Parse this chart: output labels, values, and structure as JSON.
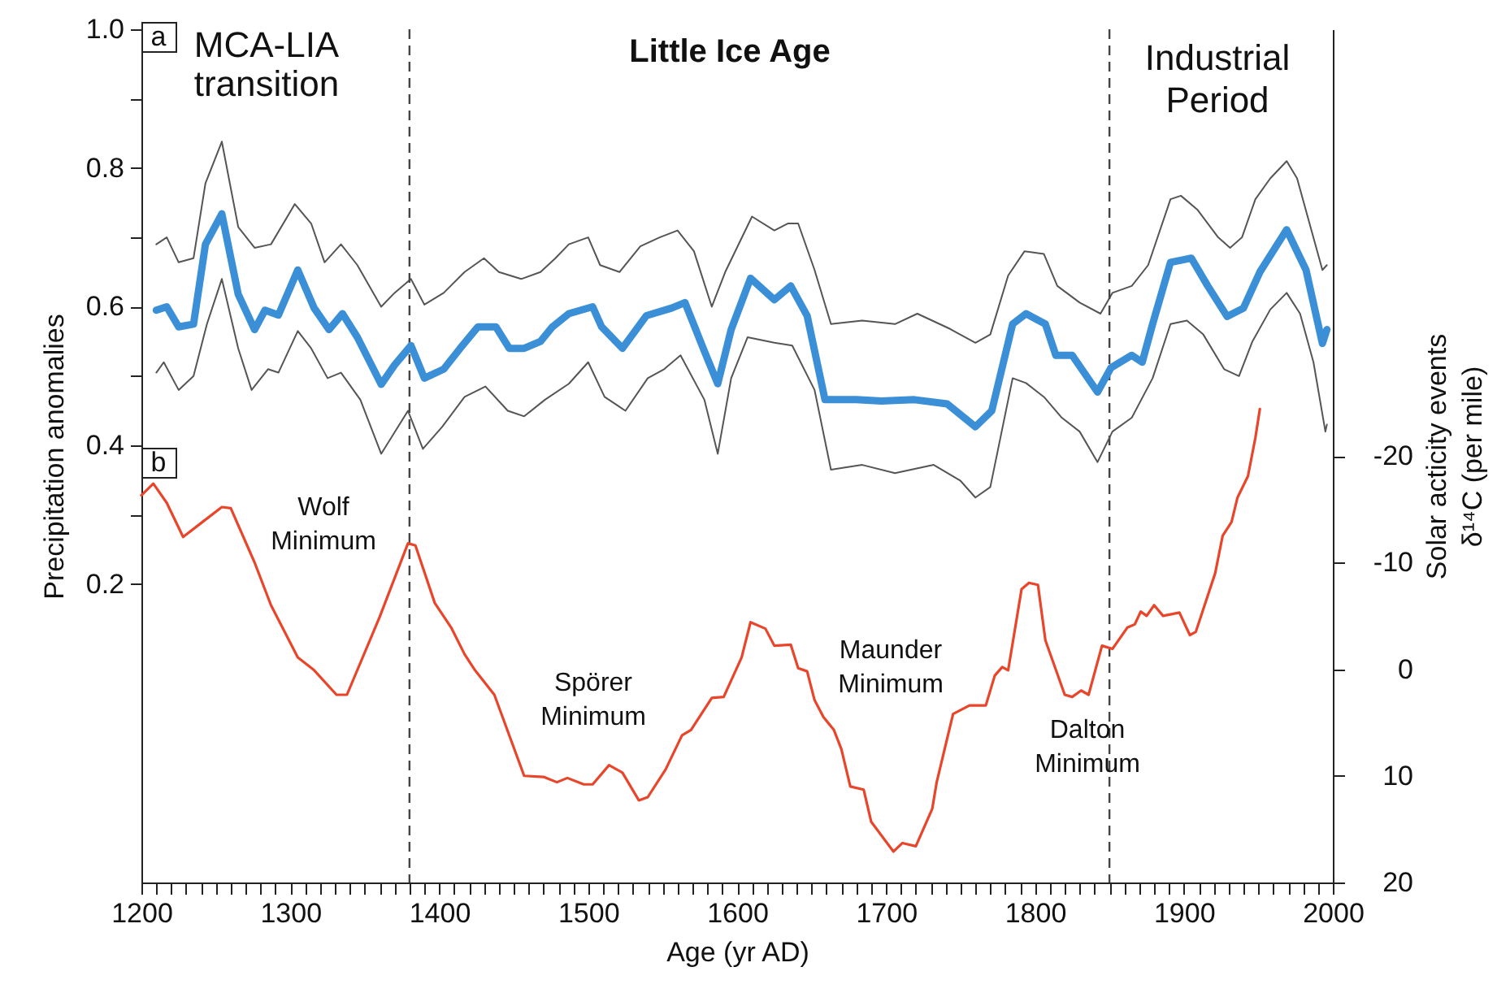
{
  "chart_data": {
    "type": "line",
    "xlabel": "Age (yr AD)",
    "ylabel": "Precipitation anomalies",
    "y2label": "Solar acticity events δ¹⁴C (per mile)",
    "xlim": [
      1200,
      2000
    ],
    "xticks": [
      1200,
      {
        "value": 1210,
        "label": null
      },
      {
        "value": 1220,
        "label": null
      },
      {
        "value": 1230,
        "label": null
      },
      {
        "value": 1240,
        "label": null
      },
      {
        "value": 1250,
        "label": null
      },
      {
        "value": 1260,
        "label": null
      },
      {
        "value": 1270,
        "label": null
      },
      {
        "value": 1280,
        "label": null
      },
      {
        "value": 1290,
        "label": null
      },
      1300,
      {
        "value": 1310,
        "label": null
      },
      {
        "value": 1320,
        "label": null
      },
      {
        "value": 1330,
        "label": null
      },
      {
        "value": 1340,
        "label": null
      },
      {
        "value": 1350,
        "label": null
      },
      {
        "value": 1360,
        "label": null
      },
      {
        "value": 1370,
        "label": null
      },
      {
        "value": 1380,
        "label": null
      },
      {
        "value": 1390,
        "label": null
      },
      1400,
      {
        "value": 1410,
        "label": null
      },
      {
        "value": 1420,
        "label": null
      },
      {
        "value": 1430,
        "label": null
      },
      {
        "value": 1440,
        "label": null
      },
      {
        "value": 1450,
        "label": null
      },
      {
        "value": 1460,
        "label": null
      },
      {
        "value": 1470,
        "label": null
      },
      {
        "value": 1480,
        "label": null
      },
      {
        "value": 1490,
        "label": null
      },
      1500,
      {
        "value": 1510,
        "label": null
      },
      {
        "value": 1520,
        "label": null
      },
      {
        "value": 1530,
        "label": null
      },
      {
        "value": 1540,
        "label": null
      },
      {
        "value": 1550,
        "label": null
      },
      {
        "value": 1560,
        "label": null
      },
      {
        "value": 1570,
        "label": null
      },
      {
        "value": 1580,
        "label": null
      },
      {
        "value": 1590,
        "label": null
      },
      1600,
      {
        "value": 1610,
        "label": null
      },
      {
        "value": 1620,
        "label": null
      },
      {
        "value": 1630,
        "label": null
      },
      {
        "value": 1640,
        "label": null
      },
      {
        "value": 1650,
        "label": null
      },
      {
        "value": 1660,
        "label": null
      },
      {
        "value": 1670,
        "label": null
      },
      {
        "value": 1680,
        "label": null
      },
      {
        "value": 1690,
        "label": null
      },
      1700,
      {
        "value": 1710,
        "label": null
      },
      {
        "value": 1720,
        "label": null
      },
      {
        "value": 1730,
        "label": null
      },
      {
        "value": 1740,
        "label": null
      },
      {
        "value": 1750,
        "label": null
      },
      {
        "value": 1760,
        "label": null
      },
      {
        "value": 1770,
        "label": null
      },
      {
        "value": 1780,
        "label": null
      },
      {
        "value": 1790,
        "label": null
      },
      1800,
      {
        "value": 1810,
        "label": null
      },
      {
        "value": 1820,
        "label": null
      },
      {
        "value": 1830,
        "label": null
      },
      {
        "value": 1840,
        "label": null
      },
      {
        "value": 1850,
        "label": null
      },
      {
        "value": 1860,
        "label": null
      },
      {
        "value": 1870,
        "label": null
      },
      {
        "value": 1880,
        "label": null
      },
      {
        "value": 1890,
        "label": null
      },
      1900,
      {
        "value": 1910,
        "label": null
      },
      {
        "value": 1920,
        "label": null
      },
      {
        "value": 1930,
        "label": null
      },
      {
        "value": 1940,
        "label": null
      },
      {
        "value": 1950,
        "label": null
      },
      {
        "value": 1960,
        "label": null
      },
      {
        "value": 1970,
        "label": null
      },
      {
        "value": 1980,
        "label": null
      },
      {
        "value": 1990,
        "label": null
      },
      2000
    ],
    "ylim": [
      -0.23,
      1.0
    ],
    "yticks": [
      0.2,
      {
        "value": 0.3,
        "label": null
      },
      0.4,
      {
        "value": 0.5,
        "label": null
      },
      0.6,
      {
        "value": 0.7,
        "label": null
      },
      0.8,
      {
        "value": 0.9,
        "label": null
      },
      {
        "value": 1.0,
        "label": "1.0"
      }
    ],
    "y2lim": [
      20,
      -60
    ],
    "y2ticks": [
      -20,
      -10,
      0,
      10,
      20
    ],
    "series": [
      {
        "color": "#555555",
        "x": [
          1210,
          1217,
          1225,
          1235,
          1243,
          1254,
          1265,
          1276,
          1287,
          1303,
          1314,
          1323,
          1334,
          1345,
          1361,
          1370,
          1381,
          1390,
          1403,
          1417,
          1430,
          1440,
          1455,
          1468,
          1478,
          1487,
          1500,
          1508,
          1521,
          1535,
          1548,
          1560,
          1571,
          1583,
          1592,
          1610,
          1625,
          1634,
          1641,
          1652,
          1663,
          1684,
          1706,
          1721,
          1743,
          1760,
          1770,
          1782,
          1793,
          1806,
          1815,
          1830,
          1844,
          1852,
          1865,
          1876,
          1891,
          1898,
          1909,
          1923,
          1931,
          1939,
          1948,
          1958,
          1969,
          1976,
          1985,
          1993,
          1996
        ],
        "values": [
          0.69,
          0.7,
          0.664,
          0.67,
          0.778,
          0.838,
          0.715,
          0.685,
          0.69,
          0.748,
          0.72,
          0.664,
          0.69,
          0.66,
          0.6,
          0.62,
          0.64,
          0.603,
          0.62,
          0.65,
          0.67,
          0.65,
          0.64,
          0.65,
          0.67,
          0.69,
          0.7,
          0.66,
          0.65,
          0.687,
          0.7,
          0.71,
          0.68,
          0.6,
          0.65,
          0.73,
          0.71,
          0.72,
          0.72,
          0.653,
          0.575,
          0.58,
          0.575,
          0.59,
          0.568,
          0.548,
          0.56,
          0.645,
          0.68,
          0.676,
          0.63,
          0.606,
          0.59,
          0.62,
          0.63,
          0.66,
          0.755,
          0.76,
          0.74,
          0.7,
          0.685,
          0.7,
          0.755,
          0.785,
          0.81,
          0.785,
          0.715,
          0.653,
          0.66
        ]
      },
      {
        "color": "#555555",
        "x": [
          1210,
          1215,
          1225,
          1235,
          1244,
          1254,
          1265,
          1274,
          1285,
          1292,
          1305,
          1314,
          1325,
          1334,
          1347,
          1361,
          1370,
          1379,
          1389,
          1402,
          1417,
          1431,
          1446,
          1457,
          1471,
          1487,
          1500,
          1511,
          1525,
          1540,
          1551,
          1562,
          1578,
          1587,
          1596,
          1607,
          1625,
          1637,
          1652,
          1663,
          1684,
          1706,
          1732,
          1750,
          1760,
          1770,
          1785,
          1794,
          1806,
          1818,
          1830,
          1842,
          1852,
          1865,
          1879,
          1891,
          1902,
          1913,
          1927,
          1937,
          1946,
          1958,
          1969,
          1978,
          1987,
          1995,
          1996
        ],
        "values": [
          0.505,
          0.52,
          0.48,
          0.5,
          0.575,
          0.64,
          0.54,
          0.48,
          0.51,
          0.505,
          0.565,
          0.54,
          0.497,
          0.505,
          0.466,
          0.388,
          0.419,
          0.45,
          0.395,
          0.427,
          0.47,
          0.485,
          0.45,
          0.442,
          0.466,
          0.489,
          0.52,
          0.47,
          0.45,
          0.497,
          0.51,
          0.53,
          0.466,
          0.388,
          0.497,
          0.556,
          0.548,
          0.544,
          0.48,
          0.365,
          0.372,
          0.36,
          0.372,
          0.349,
          0.325,
          0.34,
          0.497,
          0.49,
          0.47,
          0.44,
          0.42,
          0.376,
          0.42,
          0.44,
          0.497,
          0.575,
          0.58,
          0.56,
          0.51,
          0.5,
          0.55,
          0.596,
          0.62,
          0.59,
          0.52,
          0.42,
          0.43
        ]
      },
      {
        "color": "#3a8fd6",
        "x": [
          1210,
          1217,
          1225,
          1235,
          1243,
          1254,
          1265,
          1276,
          1283,
          1292,
          1305,
          1316,
          1326,
          1335,
          1345,
          1361,
          1370,
          1381,
          1390,
          1403,
          1414,
          1426,
          1438,
          1447,
          1457,
          1468,
          1476,
          1487,
          1503,
          1509,
          1523,
          1539,
          1556,
          1565,
          1578,
          1587,
          1596,
          1609,
          1625,
          1636,
          1647,
          1659,
          1680,
          1697,
          1719,
          1741,
          1760,
          1771,
          1785,
          1794,
          1807,
          1814,
          1825,
          1842,
          1851,
          1865,
          1872,
          1879,
          1891,
          1905,
          1916,
          1929,
          1940,
          1951,
          1969,
          1982,
          1993,
          1996
        ],
        "values": [
          0.595,
          0.6,
          0.571,
          0.575,
          0.69,
          0.734,
          0.618,
          0.567,
          0.595,
          0.588,
          0.653,
          0.598,
          0.567,
          0.59,
          0.556,
          0.488,
          0.516,
          0.544,
          0.497,
          0.51,
          0.54,
          0.571,
          0.571,
          0.54,
          0.54,
          0.55,
          0.571,
          0.59,
          0.6,
          0.571,
          0.54,
          0.587,
          0.598,
          0.606,
          0.536,
          0.489,
          0.567,
          0.641,
          0.61,
          0.63,
          0.587,
          0.466,
          0.466,
          0.464,
          0.466,
          0.46,
          0.427,
          0.45,
          0.575,
          0.59,
          0.575,
          0.53,
          0.53,
          0.477,
          0.512,
          0.53,
          0.52,
          0.575,
          0.664,
          0.67,
          0.63,
          0.586,
          0.598,
          0.65,
          0.711,
          0.653,
          0.547,
          0.567
        ]
      },
      {
        "color": "#e8452a",
        "axis": "y2",
        "x": [
          1200,
          1208,
          1217,
          1228,
          1241,
          1254,
          1260,
          1276,
          1287,
          1305,
          1316,
          1331,
          1338,
          1360,
          1379,
          1384,
          1397,
          1408,
          1417,
          1424,
          1437,
          1457,
          1470,
          1479,
          1486,
          1497,
          1503,
          1514,
          1523,
          1534,
          1540,
          1552,
          1563,
          1569,
          1583,
          1591,
          1603,
          1609,
          1619,
          1625,
          1636,
          1641,
          1647,
          1652,
          1658,
          1665,
          1670,
          1676,
          1685,
          1690,
          1705,
          1711,
          1720,
          1731,
          1734,
          1745,
          1756,
          1767,
          1773,
          1778,
          1782,
          1791,
          1796,
          1802,
          1807,
          1820,
          1825,
          1831,
          1836,
          1845,
          1852,
          1862,
          1867,
          1871,
          1875,
          1880,
          1886,
          1897,
          1904,
          1908,
          1921,
          1926,
          1932,
          1936,
          1943,
          1948,
          1951
        ],
        "values": [
          -16.3,
          -17.4,
          -15.6,
          -12.4,
          -13.8,
          -15.2,
          -15.1,
          -10.0,
          -6.0,
          -1.1,
          0.1,
          2.4,
          2.4,
          -4.9,
          -11.8,
          -11.6,
          -6.2,
          -3.9,
          -1.4,
          0.1,
          2.4,
          10.0,
          10.1,
          10.6,
          10.2,
          10.8,
          10.8,
          9.0,
          9.7,
          12.3,
          12.0,
          9.4,
          6.2,
          5.7,
          2.7,
          2.6,
          -1.1,
          -4.4,
          -3.8,
          -2.2,
          -2.3,
          -0.1,
          0.2,
          2.9,
          4.5,
          5.7,
          7.5,
          11.0,
          11.3,
          14.3,
          17.1,
          16.3,
          16.6,
          13.1,
          10.6,
          4.2,
          3.4,
          3.4,
          0.6,
          -0.2,
          0.1,
          -7.5,
          -8.1,
          -7.9,
          -2.7,
          2.4,
          2.6,
          2.0,
          2.4,
          -2.2,
          -1.9,
          -3.9,
          -4.2,
          -5.4,
          -5.0,
          -6.0,
          -5.0,
          -5.3,
          -3.2,
          -3.5,
          -9.0,
          -12.5,
          -13.8,
          -16.1,
          -18.1,
          -21.7,
          -24.4
        ]
      }
    ],
    "ref_lines": [
      {
        "axis": "x",
        "value": 1380,
        "color": "#444444",
        "line_style": "dashed"
      },
      {
        "axis": "x",
        "value": 1850,
        "color": "#444444",
        "line_style": "dashed"
      }
    ],
    "annotations": [
      "a",
      "MCA-LIA transition",
      "Little Ice Age",
      "Industrial Period",
      "b",
      "Wolf Minimum",
      "Spörer Minimum",
      "Maunder Minimum",
      "Dalton Minimum"
    ]
  }
}
